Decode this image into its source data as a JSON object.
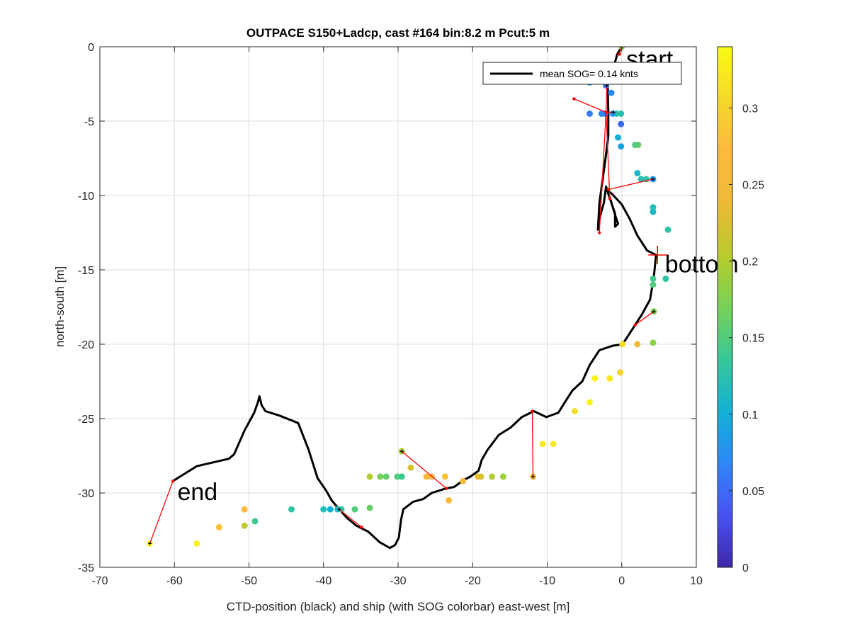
{
  "chart_data": {
    "type": "scatter",
    "title": "OUTPACE S150+Ladcp, cast #164 bin:8.2 m  Pcut:5 m",
    "xlabel": "CTD-position (black) and ship (with SOG colorbar) east-west [m]",
    "ylabel": "north-south [m]",
    "xlim": [
      -70,
      10
    ],
    "ylim": [
      -35,
      0
    ],
    "xticks": [
      "-70",
      "-60",
      "-50",
      "-40",
      "-30",
      "-20",
      "-10",
      "0",
      "10"
    ],
    "yticks": [
      "0",
      "-5",
      "-10",
      "-15",
      "-20",
      "-25",
      "-30",
      "-35"
    ],
    "grid": true,
    "legend": {
      "position": "top-right",
      "entries": [
        "mean SOG=  0.14 knts"
      ]
    },
    "colorbar": {
      "range": [
        0,
        0.34
      ],
      "ticks": [
        "0",
        "0.05",
        "0.1",
        "0.15",
        "0.2",
        "0.25",
        "0.3"
      ],
      "colormap": "parula"
    },
    "annotations": [
      {
        "text": "start",
        "x": 0.6,
        "y": -0.8
      },
      {
        "text": "bottom",
        "x": 5.8,
        "y": -14.6
      },
      {
        "text": "end",
        "x": -59.6,
        "y": -29.9
      }
    ],
    "ctd_track": [
      [
        0,
        0
      ],
      [
        -0.6,
        -0.5
      ],
      [
        -1.2,
        -1.6
      ],
      [
        -1.9,
        -2.4
      ],
      [
        -1.8,
        -4.4
      ],
      [
        -1.8,
        -6.0
      ],
      [
        -2.3,
        -8.0
      ],
      [
        -3.0,
        -10.5
      ],
      [
        -3.2,
        -12.3
      ],
      [
        -2.9,
        -11.4
      ],
      [
        -2.4,
        -10.5
      ],
      [
        -2.1,
        -9.4
      ],
      [
        -1.5,
        -10.3
      ],
      [
        -0.9,
        -11.3
      ],
      [
        -0.5,
        -11.9
      ],
      [
        -0.9,
        -12.1
      ],
      [
        -0.9,
        -11.2
      ],
      [
        -2.0,
        -9.6
      ],
      [
        -1.3,
        -9.9
      ],
      [
        0.0,
        -10.6
      ],
      [
        1.1,
        -11.6
      ],
      [
        2.1,
        -12.7
      ],
      [
        3.4,
        -13.7
      ],
      [
        4.6,
        -14.0
      ],
      [
        4.3,
        -15.5
      ],
      [
        3.8,
        -17.0
      ],
      [
        2.7,
        -18.0
      ],
      [
        1.8,
        -18.7
      ],
      [
        0.9,
        -19.4
      ],
      [
        0.1,
        -20.0
      ],
      [
        -1.2,
        -20.1
      ],
      [
        -3.0,
        -20.4
      ],
      [
        -4.3,
        -21.4
      ],
      [
        -5.3,
        -22.5
      ],
      [
        -6.6,
        -23.1
      ],
      [
        -7.5,
        -23.8
      ],
      [
        -8.5,
        -24.6
      ],
      [
        -10.1,
        -24.9
      ],
      [
        -11.8,
        -24.5
      ],
      [
        -13.4,
        -24.9
      ],
      [
        -14.9,
        -25.6
      ],
      [
        -16.5,
        -26.1
      ],
      [
        -18.0,
        -27.1
      ],
      [
        -18.8,
        -27.8
      ],
      [
        -19.2,
        -28.5
      ],
      [
        -20.3,
        -28.9
      ],
      [
        -21.1,
        -29.1
      ],
      [
        -22.5,
        -29.6
      ],
      [
        -23.6,
        -29.7
      ],
      [
        -25.5,
        -30.0
      ],
      [
        -26.6,
        -30.4
      ],
      [
        -28.0,
        -30.6
      ],
      [
        -29.3,
        -31.1
      ],
      [
        -29.6,
        -31.8
      ],
      [
        -29.9,
        -33.0
      ],
      [
        -30.4,
        -33.5
      ],
      [
        -31.1,
        -33.7
      ],
      [
        -32.5,
        -33.3
      ],
      [
        -34.0,
        -32.6
      ],
      [
        -35.6,
        -32.2
      ],
      [
        -36.8,
        -31.7
      ],
      [
        -37.9,
        -31.1
      ],
      [
        -38.9,
        -30.5
      ],
      [
        -39.7,
        -29.8
      ],
      [
        -40.8,
        -29.0
      ],
      [
        -42.0,
        -27.1
      ],
      [
        -43.4,
        -25.3
      ],
      [
        -45.9,
        -24.8
      ],
      [
        -47.8,
        -24.5
      ],
      [
        -48.3,
        -24.1
      ],
      [
        -48.6,
        -23.5
      ],
      [
        -48.8,
        -23.9
      ],
      [
        -49.3,
        -24.6
      ],
      [
        -50.6,
        -25.8
      ],
      [
        -52.0,
        -27.4
      ],
      [
        -52.7,
        -27.7
      ],
      [
        -57.0,
        -28.2
      ],
      [
        -60.2,
        -29.2
      ]
    ],
    "ship_points": [
      {
        "x": -63.3,
        "y": -33.4,
        "sog": 0.34
      },
      {
        "x": -57.0,
        "y": -33.4,
        "sog": 0.33
      },
      {
        "x": -54.0,
        "y": -32.3,
        "sog": 0.28
      },
      {
        "x": -50.6,
        "y": -32.2,
        "sog": 0.21
      },
      {
        "x": -49.2,
        "y": -31.9,
        "sog": 0.14
      },
      {
        "x": -50.6,
        "y": -31.1,
        "sog": 0.27
      },
      {
        "x": -44.3,
        "y": -31.1,
        "sog": 0.13
      },
      {
        "x": -40.0,
        "y": -31.1,
        "sog": 0.12
      },
      {
        "x": -39.1,
        "y": -31.1,
        "sog": 0.1
      },
      {
        "x": -38.1,
        "y": -31.1,
        "sog": 0.11
      },
      {
        "x": -37.6,
        "y": -31.1,
        "sog": 0.13
      },
      {
        "x": -35.8,
        "y": -31.1,
        "sog": 0.15
      },
      {
        "x": -33.8,
        "y": -31.0,
        "sog": 0.16
      },
      {
        "x": -33.8,
        "y": -28.9,
        "sog": 0.2
      },
      {
        "x": -32.4,
        "y": -28.9,
        "sog": 0.17
      },
      {
        "x": -31.6,
        "y": -28.9,
        "sog": 0.16
      },
      {
        "x": -30.1,
        "y": -28.9,
        "sog": 0.15
      },
      {
        "x": -29.5,
        "y": -28.9,
        "sog": 0.14
      },
      {
        "x": -29.5,
        "y": -27.2,
        "sog": 0.2
      },
      {
        "x": -28.3,
        "y": -28.3,
        "sog": 0.22
      },
      {
        "x": -26.2,
        "y": -28.9,
        "sog": 0.26
      },
      {
        "x": -25.5,
        "y": -28.9,
        "sog": 0.27
      },
      {
        "x": -23.7,
        "y": -28.9,
        "sog": 0.28
      },
      {
        "x": -23.2,
        "y": -30.5,
        "sog": 0.27
      },
      {
        "x": -21.3,
        "y": -29.2,
        "sog": 0.26
      },
      {
        "x": -19.3,
        "y": -28.9,
        "sog": 0.24
      },
      {
        "x": -18.9,
        "y": -28.9,
        "sog": 0.22
      },
      {
        "x": -17.4,
        "y": -28.9,
        "sog": 0.2
      },
      {
        "x": -15.9,
        "y": -28.9,
        "sog": 0.19
      },
      {
        "x": -11.9,
        "y": -28.9,
        "sog": 0.25
      },
      {
        "x": -10.6,
        "y": -26.7,
        "sog": 0.32
      },
      {
        "x": -9.2,
        "y": -26.7,
        "sog": 0.32
      },
      {
        "x": -6.3,
        "y": -24.5,
        "sog": 0.31
      },
      {
        "x": -4.3,
        "y": -23.9,
        "sog": 0.33
      },
      {
        "x": -3.6,
        "y": -22.3,
        "sog": 0.33
      },
      {
        "x": -1.6,
        "y": -22.3,
        "sog": 0.32
      },
      {
        "x": -0.2,
        "y": -21.9,
        "sog": 0.3
      },
      {
        "x": 0.1,
        "y": -20.0,
        "sog": 0.31
      },
      {
        "x": 2.1,
        "y": -20.0,
        "sog": 0.24
      },
      {
        "x": 4.2,
        "y": -19.9,
        "sog": 0.18
      },
      {
        "x": 4.3,
        "y": -17.8,
        "sog": 0.17
      },
      {
        "x": 4.2,
        "y": -16.0,
        "sog": 0.15
      },
      {
        "x": 4.2,
        "y": -15.6,
        "sog": 0.14
      },
      {
        "x": 5.9,
        "y": -15.6,
        "sog": 0.13
      },
      {
        "x": 6.2,
        "y": -12.3,
        "sog": 0.13
      },
      {
        "x": 4.2,
        "y": -11.1,
        "sog": 0.11
      },
      {
        "x": 4.2,
        "y": -10.8,
        "sog": 0.12
      },
      {
        "x": 4.2,
        "y": -8.9,
        "sog": 0.08
      },
      {
        "x": 3.3,
        "y": -8.9,
        "sog": 0.13
      },
      {
        "x": 2.6,
        "y": -8.9,
        "sog": 0.12
      },
      {
        "x": 2.1,
        "y": -8.5,
        "sog": 0.11
      },
      {
        "x": 2.2,
        "y": -6.6,
        "sog": 0.16
      },
      {
        "x": 1.8,
        "y": -6.6,
        "sog": 0.15
      },
      {
        "x": -0.1,
        "y": -6.7,
        "sog": 0.09
      },
      {
        "x": -0.5,
        "y": -6.1,
        "sog": 0.1
      },
      {
        "x": -0.1,
        "y": -5.2,
        "sog": 0.05
      },
      {
        "x": -0.1,
        "y": -4.5,
        "sog": 0.12
      },
      {
        "x": -0.7,
        "y": -4.5,
        "sog": 0.13
      },
      {
        "x": -1.2,
        "y": -4.5,
        "sog": 0.08
      },
      {
        "x": -2.2,
        "y": -4.5,
        "sog": 0.05
      },
      {
        "x": -2.7,
        "y": -4.5,
        "sog": 0.07
      },
      {
        "x": -4.3,
        "y": -4.5,
        "sog": 0.06
      },
      {
        "x": -1.4,
        "y": -3.1,
        "sog": 0.07
      },
      {
        "x": -2.1,
        "y": -2.6,
        "sog": 0.05
      },
      {
        "x": -2.1,
        "y": -2.4,
        "sog": 0.07
      },
      {
        "x": -4.3,
        "y": -2.4,
        "sog": 0.09
      },
      {
        "x": 0.0,
        "y": 0.0,
        "sog": 0.18
      }
    ],
    "link_lines": [
      [
        [
          -63.3,
          -33.4
        ],
        [
          -60.2,
          -29.2
        ]
      ],
      [
        [
          -37.9,
          -31.1
        ],
        [
          -34.9,
          -32.3
        ]
      ],
      [
        [
          -29.5,
          -27.2
        ],
        [
          -23.5,
          -29.7
        ]
      ],
      [
        [
          -11.9,
          -28.9
        ],
        [
          -12.0,
          -24.5
        ]
      ],
      [
        [
          4.3,
          -17.8
        ],
        [
          1.8,
          -18.7
        ]
      ],
      [
        [
          4.2,
          -8.9
        ],
        [
          -1.8,
          -9.6
        ]
      ],
      [
        [
          -1.6,
          -10.2
        ],
        [
          -2.1,
          -4.4
        ]
      ],
      [
        [
          -2.1,
          -4.4
        ],
        [
          -6.4,
          -3.5
        ]
      ],
      [
        [
          -2.1,
          -4.4
        ],
        [
          -1.3,
          -4.4
        ]
      ],
      [
        [
          -3.0,
          -12.5
        ],
        [
          -2.1,
          -4.4
        ]
      ],
      [
        [
          -2.1,
          -4.4
        ],
        [
          -2.0,
          -2.6
        ]
      ],
      [
        [
          -2.0,
          -2.6
        ],
        [
          -2.1,
          -2.4
        ]
      ],
      [
        [
          0.0,
          0.0
        ],
        [
          -0.3,
          -0.5
        ]
      ]
    ],
    "link_endpoints": [
      [
        -60.2,
        -29.2
      ],
      [
        -34.9,
        -32.3
      ],
      [
        -23.5,
        -29.7
      ],
      [
        -12.0,
        -24.5
      ],
      [
        1.8,
        -18.7
      ],
      [
        -1.8,
        -9.6
      ],
      [
        -1.6,
        -10.2
      ],
      [
        -6.4,
        -3.5
      ],
      [
        -3.0,
        -12.5
      ],
      [
        -2.1,
        -4.4
      ],
      [
        -0.3,
        -0.5
      ]
    ],
    "black_markers": [
      [
        -63.3,
        -33.4
      ],
      [
        -37.9,
        -31.1
      ],
      [
        -29.5,
        -27.2
      ],
      [
        -11.9,
        -28.9
      ],
      [
        4.3,
        -17.8
      ],
      [
        4.2,
        -8.9
      ],
      [
        -1.1,
        -4.4
      ],
      [
        -2.0,
        -2.6
      ],
      [
        0.0,
        0.0
      ]
    ],
    "bottom_marker": [
      4.8,
      -14.0
    ]
  }
}
